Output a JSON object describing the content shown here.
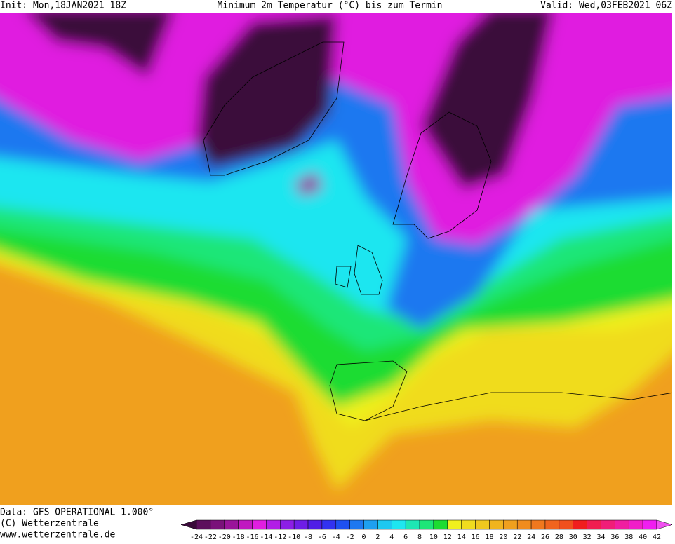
{
  "header": {
    "init": "Init: Mon,18JAN2021 18Z",
    "title": "Minimum 2m Temperatur (°C) bis zum Termin",
    "valid": "Valid: Wed,03FEB2021 06Z"
  },
  "footer": {
    "data": "Data: GFS OPERATIONAL 1.000°",
    "copyright": "(C) Wetterzentrale",
    "url": "www.wetterzentrale.de"
  },
  "legend": {
    "ticks": [
      -24,
      -22,
      -20,
      -18,
      -16,
      -14,
      -12,
      -10,
      -8,
      -6,
      -4,
      -2,
      0,
      2,
      4,
      6,
      8,
      10,
      12,
      14,
      16,
      18,
      20,
      22,
      24,
      26,
      28,
      30,
      32,
      34,
      36,
      38,
      40,
      42
    ],
    "colors": [
      "#3a0a3a",
      "#5c0f5c",
      "#7a117a",
      "#9a149a",
      "#c018c0",
      "#e01ee0",
      "#b21ee6",
      "#8c1ee6",
      "#6e1ee6",
      "#501ee6",
      "#3232f0",
      "#1e50f0",
      "#1e78f0",
      "#1ea0f0",
      "#1ec8f0",
      "#1ee6f0",
      "#1ee6b4",
      "#1ee678",
      "#1edc32",
      "#f0f01e",
      "#f0dc1e",
      "#f0c81e",
      "#f0b41e",
      "#f0a01e",
      "#f08c1e",
      "#f0781e",
      "#f0641e",
      "#f0501e",
      "#f01e1e",
      "#f01e50",
      "#f01e78",
      "#f01ea0",
      "#f01ec8",
      "#f01ef0",
      "#f050f0"
    ]
  }
}
